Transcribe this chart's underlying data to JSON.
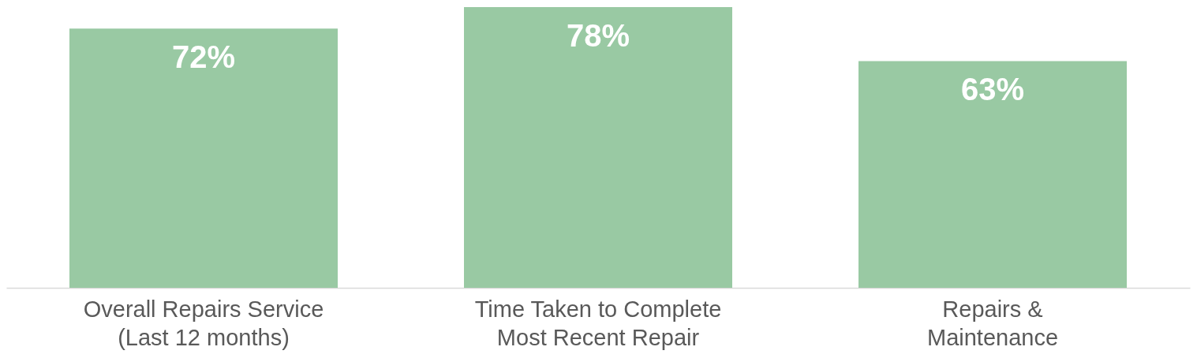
{
  "chart_data": {
    "type": "bar",
    "categories": [
      "Overall Repairs Service\n(Last 12 months)",
      "Time Taken to Complete\nMost Recent Repair",
      "Repairs &\nMaintenance"
    ],
    "values": [
      72,
      78,
      63
    ],
    "color": "#99c9a3",
    "data_labels": true,
    "value_labels": [
      "72%",
      "78%",
      "63%"
    ],
    "grid": false,
    "tick_labels": "x"
  }
}
